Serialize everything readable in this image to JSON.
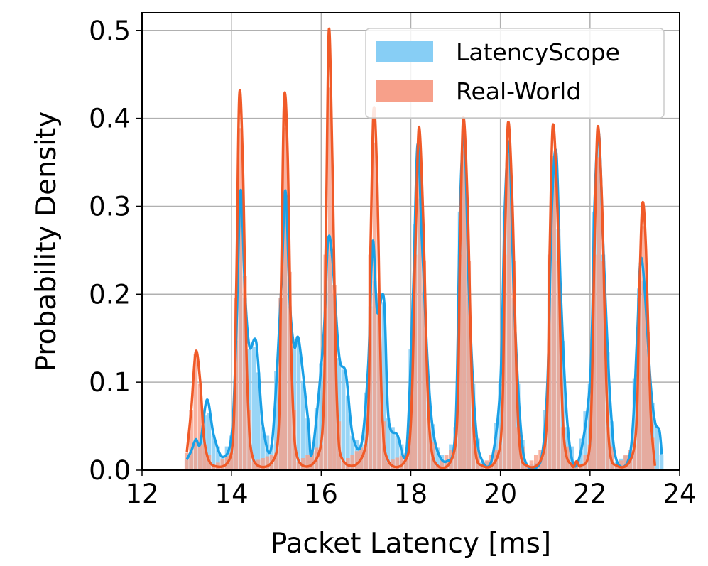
{
  "chart_data": {
    "type": "histogram",
    "xlabel": "Packet Latency [ms]",
    "ylabel": "Probability Density",
    "xlim": [
      12,
      24
    ],
    "ylim": [
      0,
      0.52
    ],
    "xticks": [
      "12",
      "14",
      "16",
      "18",
      "20",
      "22",
      "24"
    ],
    "yticks": [
      "0.0",
      "0.1",
      "0.2",
      "0.3",
      "0.4",
      "0.5"
    ],
    "grid": true,
    "legend_position": "top-right",
    "series": [
      {
        "name": "LatencyScope",
        "color": "#1aa0e6",
        "fill": "#87cef5",
        "kde": [
          [
            13.0,
            0.012
          ],
          [
            13.1,
            0.022
          ],
          [
            13.2,
            0.035
          ],
          [
            13.3,
            0.03
          ],
          [
            13.45,
            0.08
          ],
          [
            13.6,
            0.04
          ],
          [
            13.8,
            0.015
          ],
          [
            14.0,
            0.04
          ],
          [
            14.1,
            0.15
          ],
          [
            14.2,
            0.318
          ],
          [
            14.3,
            0.2
          ],
          [
            14.4,
            0.14
          ],
          [
            14.55,
            0.145
          ],
          [
            14.7,
            0.05
          ],
          [
            14.9,
            0.03
          ],
          [
            15.1,
            0.2
          ],
          [
            15.2,
            0.318
          ],
          [
            15.3,
            0.19
          ],
          [
            15.4,
            0.14
          ],
          [
            15.5,
            0.148
          ],
          [
            15.7,
            0.06
          ],
          [
            15.8,
            0.02
          ],
          [
            16.05,
            0.15
          ],
          [
            16.15,
            0.26
          ],
          [
            16.25,
            0.24
          ],
          [
            16.4,
            0.13
          ],
          [
            16.55,
            0.11
          ],
          [
            16.7,
            0.04
          ],
          [
            16.9,
            0.03
          ],
          [
            17.05,
            0.12
          ],
          [
            17.15,
            0.26
          ],
          [
            17.25,
            0.18
          ],
          [
            17.4,
            0.195
          ],
          [
            17.5,
            0.06
          ],
          [
            17.7,
            0.04
          ],
          [
            17.9,
            0.02
          ],
          [
            18.05,
            0.2
          ],
          [
            18.15,
            0.37
          ],
          [
            18.25,
            0.26
          ],
          [
            18.4,
            0.1
          ],
          [
            18.55,
            0.03
          ],
          [
            18.8,
            0.01
          ],
          [
            19.0,
            0.05
          ],
          [
            19.1,
            0.3
          ],
          [
            19.2,
            0.38
          ],
          [
            19.3,
            0.2
          ],
          [
            19.45,
            0.05
          ],
          [
            19.6,
            0.01
          ],
          [
            19.8,
            0.01
          ],
          [
            20.0,
            0.1
          ],
          [
            20.1,
            0.3
          ],
          [
            20.2,
            0.37
          ],
          [
            20.3,
            0.2
          ],
          [
            20.45,
            0.05
          ],
          [
            20.6,
            0.005
          ],
          [
            20.9,
            0.01
          ],
          [
            21.05,
            0.1
          ],
          [
            21.15,
            0.3
          ],
          [
            21.25,
            0.36
          ],
          [
            21.35,
            0.2
          ],
          [
            21.5,
            0.05
          ],
          [
            21.7,
            0.005
          ],
          [
            22.0,
            0.1
          ],
          [
            22.1,
            0.3
          ],
          [
            22.2,
            0.383
          ],
          [
            22.3,
            0.25
          ],
          [
            22.45,
            0.08
          ],
          [
            22.6,
            0.01
          ],
          [
            22.9,
            0.02
          ],
          [
            23.05,
            0.15
          ],
          [
            23.12,
            0.235
          ],
          [
            23.2,
            0.22
          ],
          [
            23.35,
            0.1
          ],
          [
            23.45,
            0.055
          ],
          [
            23.55,
            0.045
          ],
          [
            23.6,
            0.018
          ]
        ]
      },
      {
        "name": "Real-World",
        "color": "#f05a28",
        "fill": "#f7a08a",
        "kde": [
          [
            13.0,
            0.02
          ],
          [
            13.1,
            0.07
          ],
          [
            13.2,
            0.135
          ],
          [
            13.3,
            0.1
          ],
          [
            13.4,
            0.03
          ],
          [
            13.6,
            0.005
          ],
          [
            14.0,
            0.02
          ],
          [
            14.1,
            0.2
          ],
          [
            14.17,
            0.425
          ],
          [
            14.25,
            0.35
          ],
          [
            14.35,
            0.1
          ],
          [
            14.5,
            0.01
          ],
          [
            15.0,
            0.02
          ],
          [
            15.1,
            0.2
          ],
          [
            15.17,
            0.42
          ],
          [
            15.25,
            0.36
          ],
          [
            15.35,
            0.1
          ],
          [
            15.5,
            0.01
          ],
          [
            16.0,
            0.03
          ],
          [
            16.1,
            0.25
          ],
          [
            16.17,
            0.5
          ],
          [
            16.25,
            0.35
          ],
          [
            16.35,
            0.08
          ],
          [
            16.5,
            0.01
          ],
          [
            17.0,
            0.03
          ],
          [
            17.1,
            0.25
          ],
          [
            17.17,
            0.41
          ],
          [
            17.25,
            0.33
          ],
          [
            17.35,
            0.08
          ],
          [
            17.5,
            0.01
          ],
          [
            17.95,
            0.02
          ],
          [
            18.1,
            0.25
          ],
          [
            18.18,
            0.39
          ],
          [
            18.28,
            0.28
          ],
          [
            18.4,
            0.06
          ],
          [
            18.6,
            0.005
          ],
          [
            19.0,
            0.03
          ],
          [
            19.1,
            0.25
          ],
          [
            19.17,
            0.4
          ],
          [
            19.27,
            0.3
          ],
          [
            19.4,
            0.05
          ],
          [
            19.6,
            0.005
          ],
          [
            20.0,
            0.03
          ],
          [
            20.1,
            0.25
          ],
          [
            20.17,
            0.395
          ],
          [
            20.27,
            0.3
          ],
          [
            20.4,
            0.05
          ],
          [
            20.6,
            0.005
          ],
          [
            21.0,
            0.03
          ],
          [
            21.1,
            0.25
          ],
          [
            21.17,
            0.392
          ],
          [
            21.27,
            0.3
          ],
          [
            21.4,
            0.05
          ],
          [
            21.6,
            0.005
          ],
          [
            21.7,
            0.01
          ],
          [
            21.8,
            0.005
          ],
          [
            22.0,
            0.03
          ],
          [
            22.1,
            0.25
          ],
          [
            22.17,
            0.39
          ],
          [
            22.27,
            0.3
          ],
          [
            22.4,
            0.05
          ],
          [
            22.6,
            0.005
          ],
          [
            23.0,
            0.03
          ],
          [
            23.1,
            0.2
          ],
          [
            23.17,
            0.303
          ],
          [
            23.25,
            0.25
          ],
          [
            23.35,
            0.07
          ],
          [
            23.45,
            0.005
          ]
        ]
      }
    ]
  }
}
